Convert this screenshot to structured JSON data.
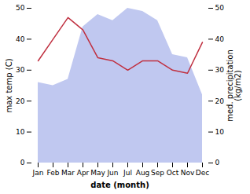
{
  "chart_data": {
    "type": "line",
    "categories": [
      "Jan",
      "Feb",
      "Mar",
      "Apr",
      "May",
      "Jun",
      "Jul",
      "Aug",
      "Sep",
      "Oct",
      "Nov",
      "Dec"
    ],
    "xlabel": "date (month)",
    "ylabel": "max temp (C)",
    "y2label": "med. precipitation\n(kg/m2)",
    "series": [
      {
        "type": "area",
        "axis": "y2",
        "color": "#c0c8f0",
        "values": [
          26,
          25,
          27,
          44,
          48,
          46,
          50,
          49,
          46,
          35,
          34,
          22
        ]
      },
      {
        "type": "line",
        "color": "#c03040",
        "values": [
          33,
          40,
          47,
          43,
          34,
          33,
          30,
          33,
          33,
          30,
          29,
          39
        ]
      }
    ],
    "ylim": [
      0,
      50
    ],
    "yticks": [
      0,
      10,
      20,
      30,
      40,
      50
    ],
    "y2lim": [
      0,
      50
    ],
    "y2ticks": [
      0,
      10,
      20,
      30,
      40,
      50
    ],
    "grid": false
  }
}
